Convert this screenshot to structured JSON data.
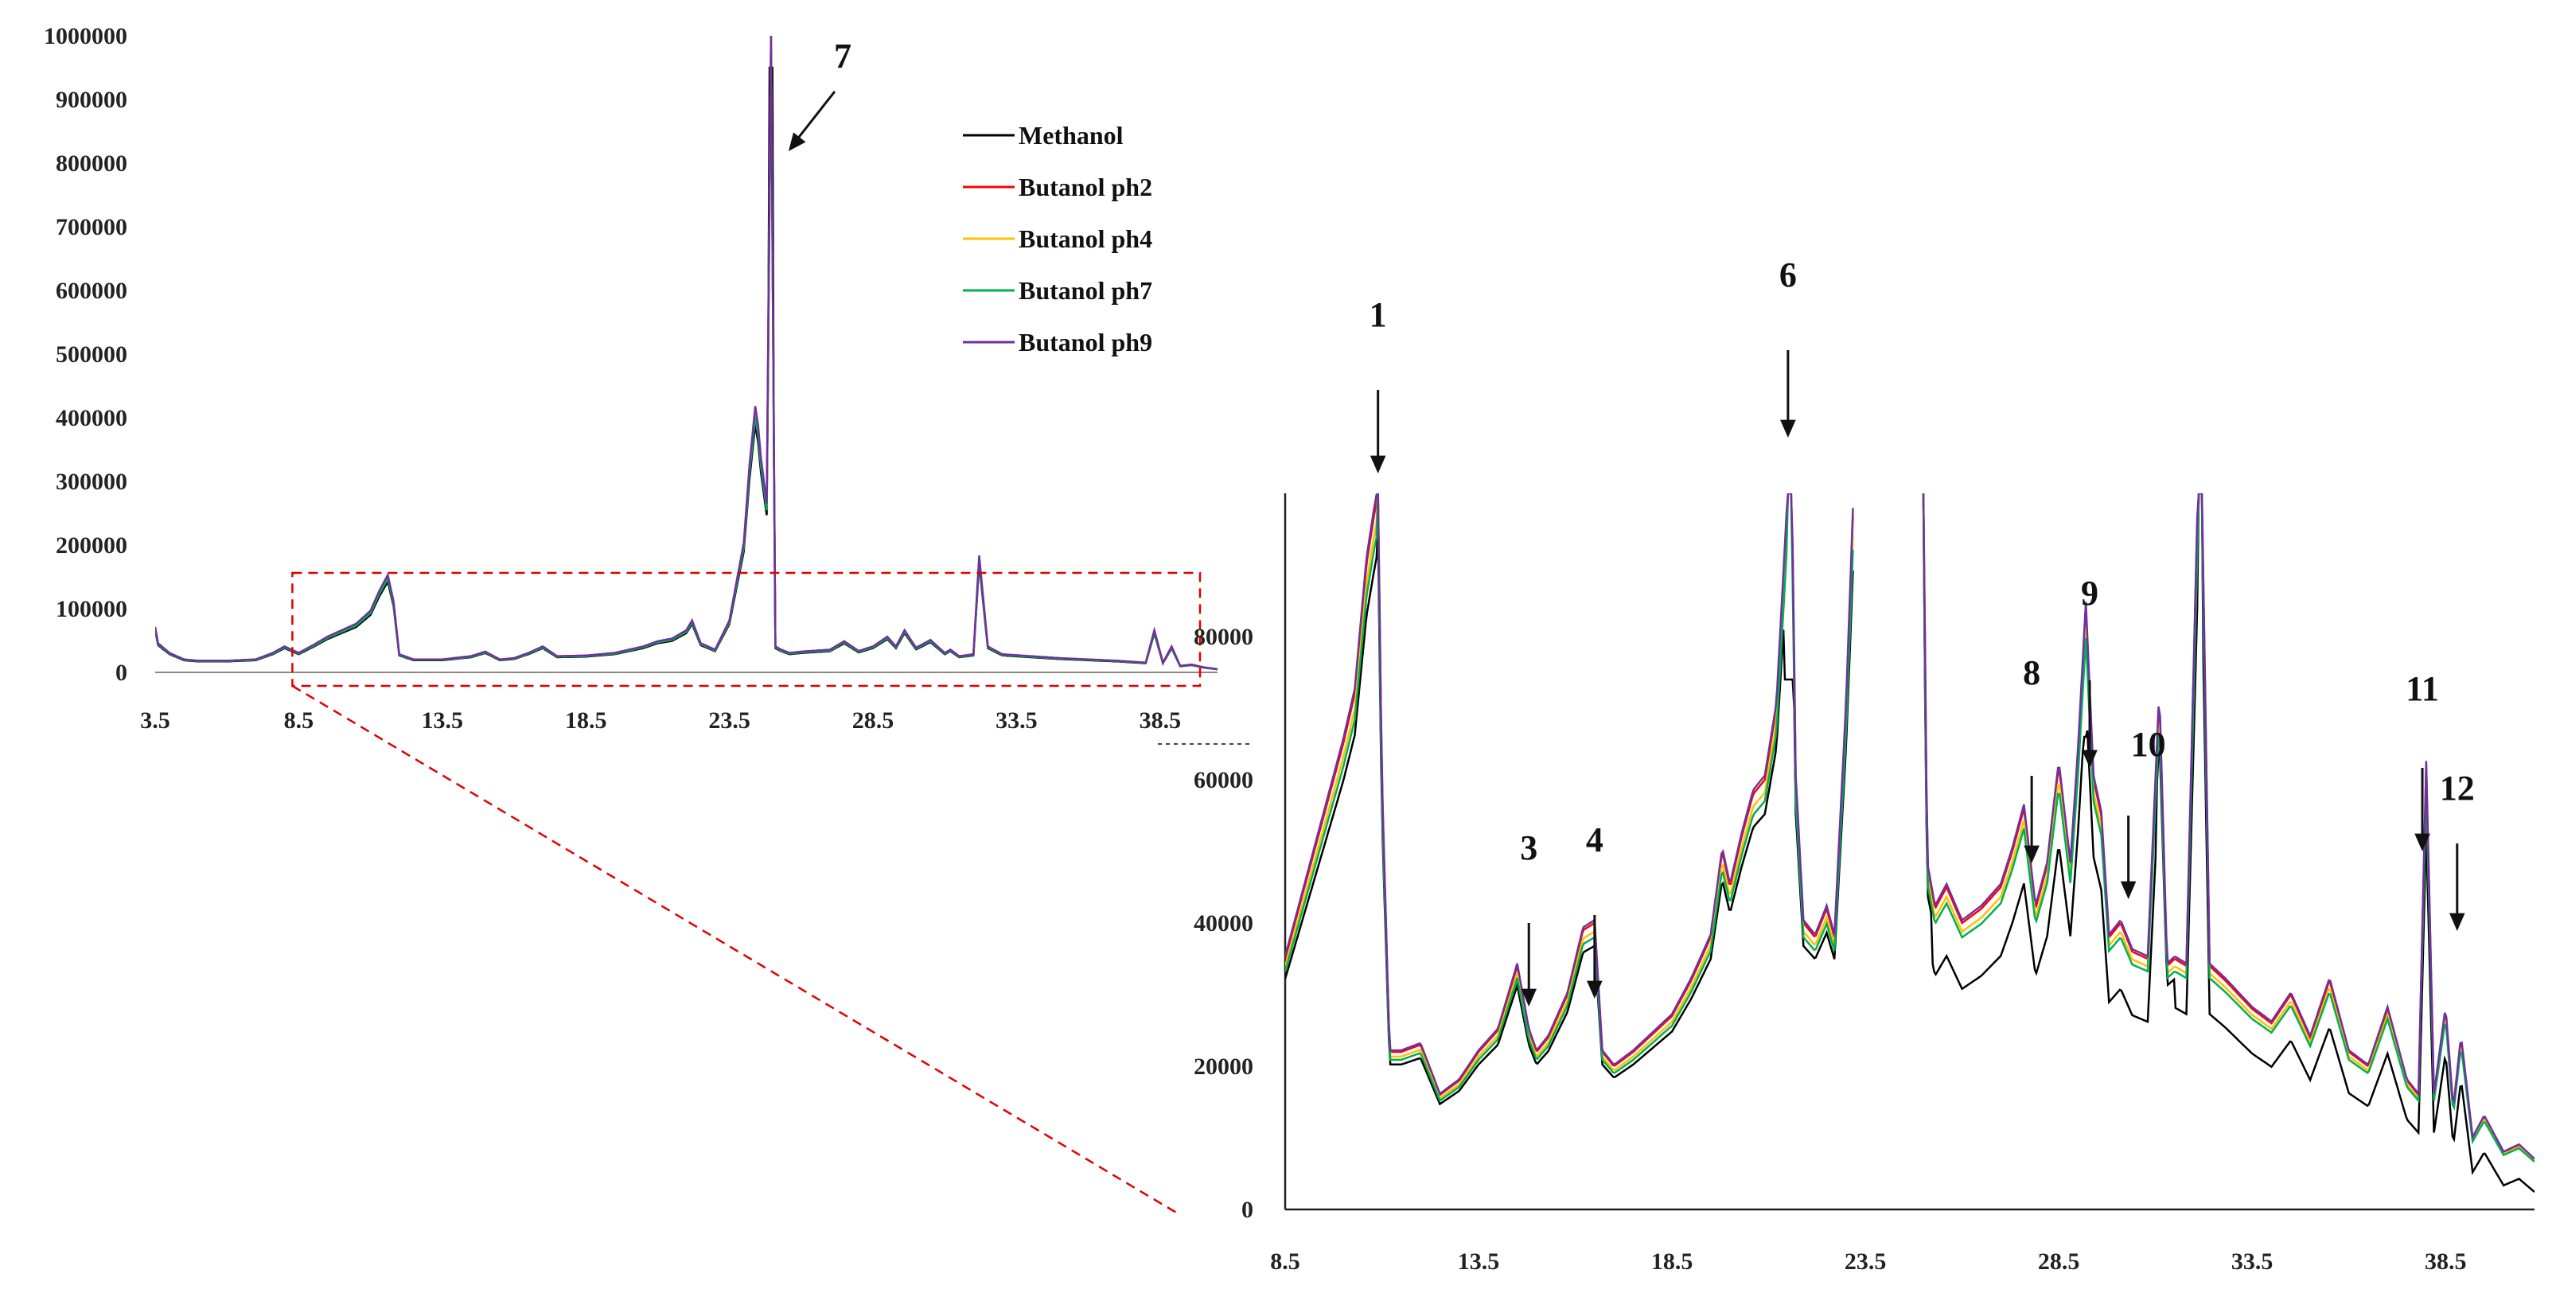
{
  "chart_data": [
    {
      "id": "overview",
      "type": "line",
      "title": "",
      "xlabel": "",
      "ylabel": "",
      "xlim": [
        3.5,
        40.5
      ],
      "ylim": [
        0,
        1000000
      ],
      "x_ticks": [
        "3.5",
        "8.5",
        "13.5",
        "18.5",
        "23.5",
        "28.5",
        "33.5",
        "38.5"
      ],
      "y_ticks": [
        "0",
        "100000",
        "200000",
        "300000",
        "400000",
        "500000",
        "600000",
        "700000",
        "800000",
        "900000",
        "1000000"
      ],
      "legend": {
        "position": "top-right"
      },
      "series": [
        {
          "name": "Methanol",
          "color": "#000000"
        },
        {
          "name": "Butanol ph2",
          "color": "#ff0000"
        },
        {
          "name": "Butanol ph4",
          "color": "#ffc000"
        },
        {
          "name": "Butanol ph7",
          "color": "#00b050"
        },
        {
          "name": "Butanol ph9",
          "color": "#7030a0"
        }
      ],
      "profile": {
        "x": [
          3.5,
          3.6,
          4.0,
          4.5,
          5.0,
          6.0,
          7.0,
          7.6,
          8.0,
          8.5,
          9.0,
          9.5,
          10.0,
          10.5,
          11.0,
          11.3,
          11.6,
          11.8,
          12.0,
          12.5,
          13.5,
          14.5,
          15.0,
          15.5,
          16.0,
          16.5,
          17.0,
          17.5,
          18.5,
          19.5,
          20.5,
          21.0,
          21.5,
          22.0,
          22.2,
          22.5,
          23.0,
          23.5,
          24.0,
          24.2,
          24.4,
          24.5,
          24.6,
          24.8,
          24.95,
          25.1,
          25.3,
          25.6,
          26.0,
          27.0,
          27.5,
          28.0,
          28.5,
          29.0,
          29.3,
          29.6,
          30.0,
          30.5,
          31.0,
          31.2,
          31.5,
          32.0,
          32.2,
          32.5,
          33.0,
          34.0,
          35.0,
          36.0,
          37.0,
          38.0,
          38.3,
          38.6,
          38.9,
          39.2,
          39.6,
          40.0,
          40.5
        ],
        "y": [
          70000,
          45000,
          30000,
          20000,
          18000,
          18000,
          20000,
          30000,
          40000,
          30000,
          42000,
          55000,
          65000,
          75000,
          95000,
          125000,
          150000,
          110000,
          28000,
          20000,
          20000,
          25000,
          32000,
          20000,
          22000,
          30000,
          40000,
          25000,
          26000,
          30000,
          40000,
          48000,
          52000,
          65000,
          80000,
          45000,
          35000,
          80000,
          200000,
          320000,
          410000,
          380000,
          330000,
          260000,
          1000000,
          40000,
          35000,
          30000,
          32000,
          35000,
          48000,
          33000,
          40000,
          55000,
          40000,
          65000,
          38000,
          50000,
          30000,
          35000,
          25000,
          28000,
          180000,
          40000,
          28000,
          25000,
          22000,
          20000,
          18000,
          15000,
          65000,
          15000,
          40000,
          10000,
          12000,
          8000,
          5000
        ]
      }
    },
    {
      "id": "zoom",
      "type": "line",
      "title": "",
      "xlabel": "",
      "ylabel": "",
      "xlim": [
        8.5,
        40.8
      ],
      "ylim": [
        0,
        100000
      ],
      "axis_break_above": 90000,
      "x_ticks": [
        "8.5",
        "13.5",
        "18.5",
        "23.5",
        "28.5",
        "33.5",
        "38.5"
      ],
      "y_ticks": [
        "0",
        "20000",
        "40000",
        "60000",
        "80000"
      ],
      "series": [
        {
          "name": "Methanol",
          "color": "#000000"
        },
        {
          "name": "Butanol ph2",
          "color": "#ff0000"
        },
        {
          "name": "Butanol ph4",
          "color": "#ffc000"
        },
        {
          "name": "Butanol ph7",
          "color": "#00b050"
        },
        {
          "name": "Butanol ph9",
          "color": "#7030a0"
        }
      ],
      "profile": {
        "x": [
          8.5,
          9.0,
          9.5,
          10.0,
          10.3,
          10.6,
          10.8,
          10.9,
          11.0,
          11.2,
          11.5,
          12.0,
          12.5,
          13.0,
          13.5,
          14.0,
          14.5,
          14.8,
          15.0,
          15.3,
          15.8,
          16.2,
          16.5,
          16.7,
          17.0,
          17.5,
          18.5,
          19.0,
          19.5,
          19.8,
          20.0,
          20.3,
          20.6,
          20.9,
          21.2,
          21.5,
          21.6,
          21.7,
          21.9,
          22.2,
          22.5,
          22.7,
          23.0,
          23.2
        ],
        "y": [
          35000,
          45000,
          55000,
          65000,
          72000,
          90000,
          97000,
          100000,
          60000,
          22000,
          22000,
          23000,
          16000,
          18000,
          22000,
          25000,
          34000,
          25000,
          22000,
          24000,
          30000,
          39000,
          40000,
          22000,
          20000,
          22000,
          27000,
          32000,
          38000,
          50000,
          45000,
          52000,
          58000,
          60000,
          70000,
          100000,
          100000,
          60000,
          40000,
          38000,
          42000,
          38000,
          70000,
          100000
        ]
      },
      "profile2": {
        "x": [
          25.0,
          25.1,
          25.3,
          25.6,
          26.0,
          26.5,
          27.0,
          27.3,
          27.6,
          27.9,
          28.2,
          28.5,
          28.8,
          29.0,
          29.2,
          29.4,
          29.6,
          29.8,
          30.1,
          30.4,
          30.8,
          31.1,
          31.3,
          31.5,
          31.8,
          32.1,
          32.2,
          32.4,
          32.8,
          33.5,
          34.0,
          34.5,
          35.0,
          35.5,
          36.0,
          36.5,
          37.0,
          37.5,
          37.8,
          38.0,
          38.2,
          38.5,
          38.7,
          38.9,
          39.2,
          39.5,
          40.0,
          40.4,
          40.8
        ],
        "y": [
          100000,
          48000,
          42000,
          45000,
          40000,
          42000,
          45000,
          50000,
          56000,
          42000,
          48000,
          62000,
          48000,
          64000,
          84000,
          60000,
          55000,
          38000,
          40000,
          36000,
          35000,
          72000,
          34000,
          35000,
          34000,
          100000,
          100000,
          34000,
          32000,
          28000,
          26000,
          30000,
          24000,
          32000,
          22000,
          20000,
          28000,
          18000,
          16000,
          62000,
          16000,
          28000,
          14000,
          24000,
          10000,
          13000,
          8000,
          9000,
          7000
        ]
      },
      "methanol_overrides": {
        "x": [
          10.9,
          21.5,
          21.6,
          29.1
        ],
        "y": [
          95000,
          74000,
          74000,
          72000
        ]
      },
      "annotations": [
        "1",
        "3",
        "4",
        "6",
        "8",
        "9",
        "10",
        "11",
        "12"
      ],
      "annotation_x": [
        10.9,
        14.8,
        16.5,
        21.5,
        27.8,
        29.3,
        30.3,
        37.9,
        38.8
      ]
    }
  ],
  "overview_annotations": [
    "7"
  ],
  "overview_annotation_x": [
    24.95
  ]
}
